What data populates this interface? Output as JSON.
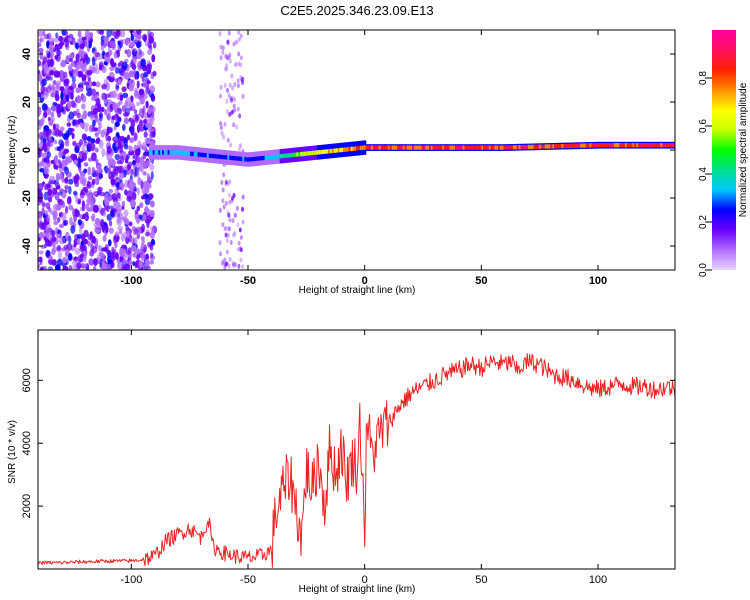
{
  "figure": {
    "title": "C2E5.2025.346.23.09.E13",
    "accent_colors": {
      "snr_line": "#ee2222",
      "axis": "#000000",
      "background": "#ffffff"
    }
  },
  "chart_data": [
    {
      "type": "heatmap",
      "title": "",
      "xlabel": "Height of straight line (km)",
      "ylabel": "Frequency (Hz)",
      "xlim": [
        -140,
        133
      ],
      "ylim": [
        -50,
        50
      ],
      "xticks": [
        -100,
        -50,
        0,
        50,
        100
      ],
      "xtick_labels": [
        "-100",
        "-50",
        "0",
        "50",
        "100"
      ],
      "yticks": [
        -40,
        -20,
        0,
        20,
        40
      ],
      "ytick_labels": [
        "-40",
        "-20",
        "0",
        "20",
        "40"
      ],
      "grid": false,
      "description_of_content": "noise-dominated speckle below about -90 km, narrow central frequency line near 0 Hz rising from about -4 Hz to +2 Hz between -90 km and 133 km",
      "line_trace": {
        "x": [
          -92,
          -80,
          -70,
          -60,
          -50,
          -40,
          -30,
          -20,
          -10,
          0,
          10,
          20,
          40,
          60,
          80,
          100,
          120,
          133
        ],
        "frequency": [
          -1,
          -1,
          -2,
          -3,
          -4,
          -3,
          -2,
          -1,
          0,
          1,
          1,
          1,
          1,
          1,
          1.5,
          2,
          2,
          2
        ],
        "peak_amplitude": [
          0.35,
          0.35,
          0.3,
          0.3,
          0.3,
          0.35,
          0.55,
          0.7,
          0.8,
          0.9,
          0.9,
          0.9,
          0.92,
          0.92,
          0.95,
          0.95,
          0.95,
          0.95
        ]
      },
      "colorbar": {
        "label": "Normalized spectral amplitude",
        "range": [
          0,
          1
        ],
        "ticks": [
          0.0,
          0.2,
          0.4,
          0.6,
          0.8
        ],
        "tick_labels": [
          "0.0",
          "0.2",
          "0.4",
          "0.6",
          "0.8"
        ],
        "colors": [
          "#e8d4ff",
          "#b06cff",
          "#6a00ff",
          "#0000ff",
          "#00c8ff",
          "#00e08a",
          "#00ff00",
          "#c8ff00",
          "#ffff00",
          "#ff8c00",
          "#ff2000",
          "#ff1060",
          "#ff00a0"
        ]
      }
    },
    {
      "type": "line",
      "title": "",
      "xlabel": "Height of straight line (km)",
      "ylabel": "SNR (10 * v/v)",
      "xlim": [
        -140,
        133
      ],
      "ylim": [
        0,
        7600
      ],
      "xticks": [
        -100,
        -50,
        0,
        50,
        100
      ],
      "xtick_labels": [
        "-100",
        "-50",
        "0",
        "50",
        "100"
      ],
      "yticks": [
        2000,
        4000,
        6000
      ],
      "ytick_labels": [
        "2000",
        "4000",
        "6000"
      ],
      "grid": false,
      "series": [
        {
          "name": "SNR",
          "color": "#ee2222",
          "x": [
            -140,
            -130,
            -120,
            -110,
            -100,
            -95,
            -90,
            -85,
            -80,
            -75,
            -70,
            -67,
            -65,
            -60,
            -55,
            -50,
            -45,
            -40,
            -38,
            -35,
            -32,
            -30,
            -27,
            -25,
            -22,
            -20,
            -17,
            -15,
            -12,
            -10,
            -8,
            -5,
            -3,
            -2,
            0,
            1,
            3,
            5,
            8,
            10,
            15,
            20,
            25,
            30,
            35,
            40,
            45,
            50,
            55,
            60,
            63,
            65,
            70,
            75,
            80,
            85,
            90,
            95,
            100,
            105,
            110,
            115,
            120,
            125,
            130,
            133
          ],
          "y": [
            200,
            200,
            230,
            250,
            260,
            300,
            400,
            900,
            1100,
            1300,
            1000,
            1600,
            700,
            500,
            400,
            350,
            400,
            600,
            1800,
            2500,
            3000,
            2200,
            1000,
            3200,
            2500,
            3600,
            2000,
            3800,
            3000,
            4000,
            2800,
            3500,
            3200,
            4800,
            1400,
            4800,
            3600,
            4000,
            4500,
            4600,
            5200,
            5600,
            5800,
            6000,
            6200,
            6300,
            6500,
            6400,
            6600,
            6500,
            6600,
            6300,
            6600,
            6500,
            6200,
            6100,
            6000,
            5800,
            5700,
            5800,
            5900,
            5800,
            5800,
            5700,
            5800,
            5700
          ]
        }
      ]
    }
  ]
}
